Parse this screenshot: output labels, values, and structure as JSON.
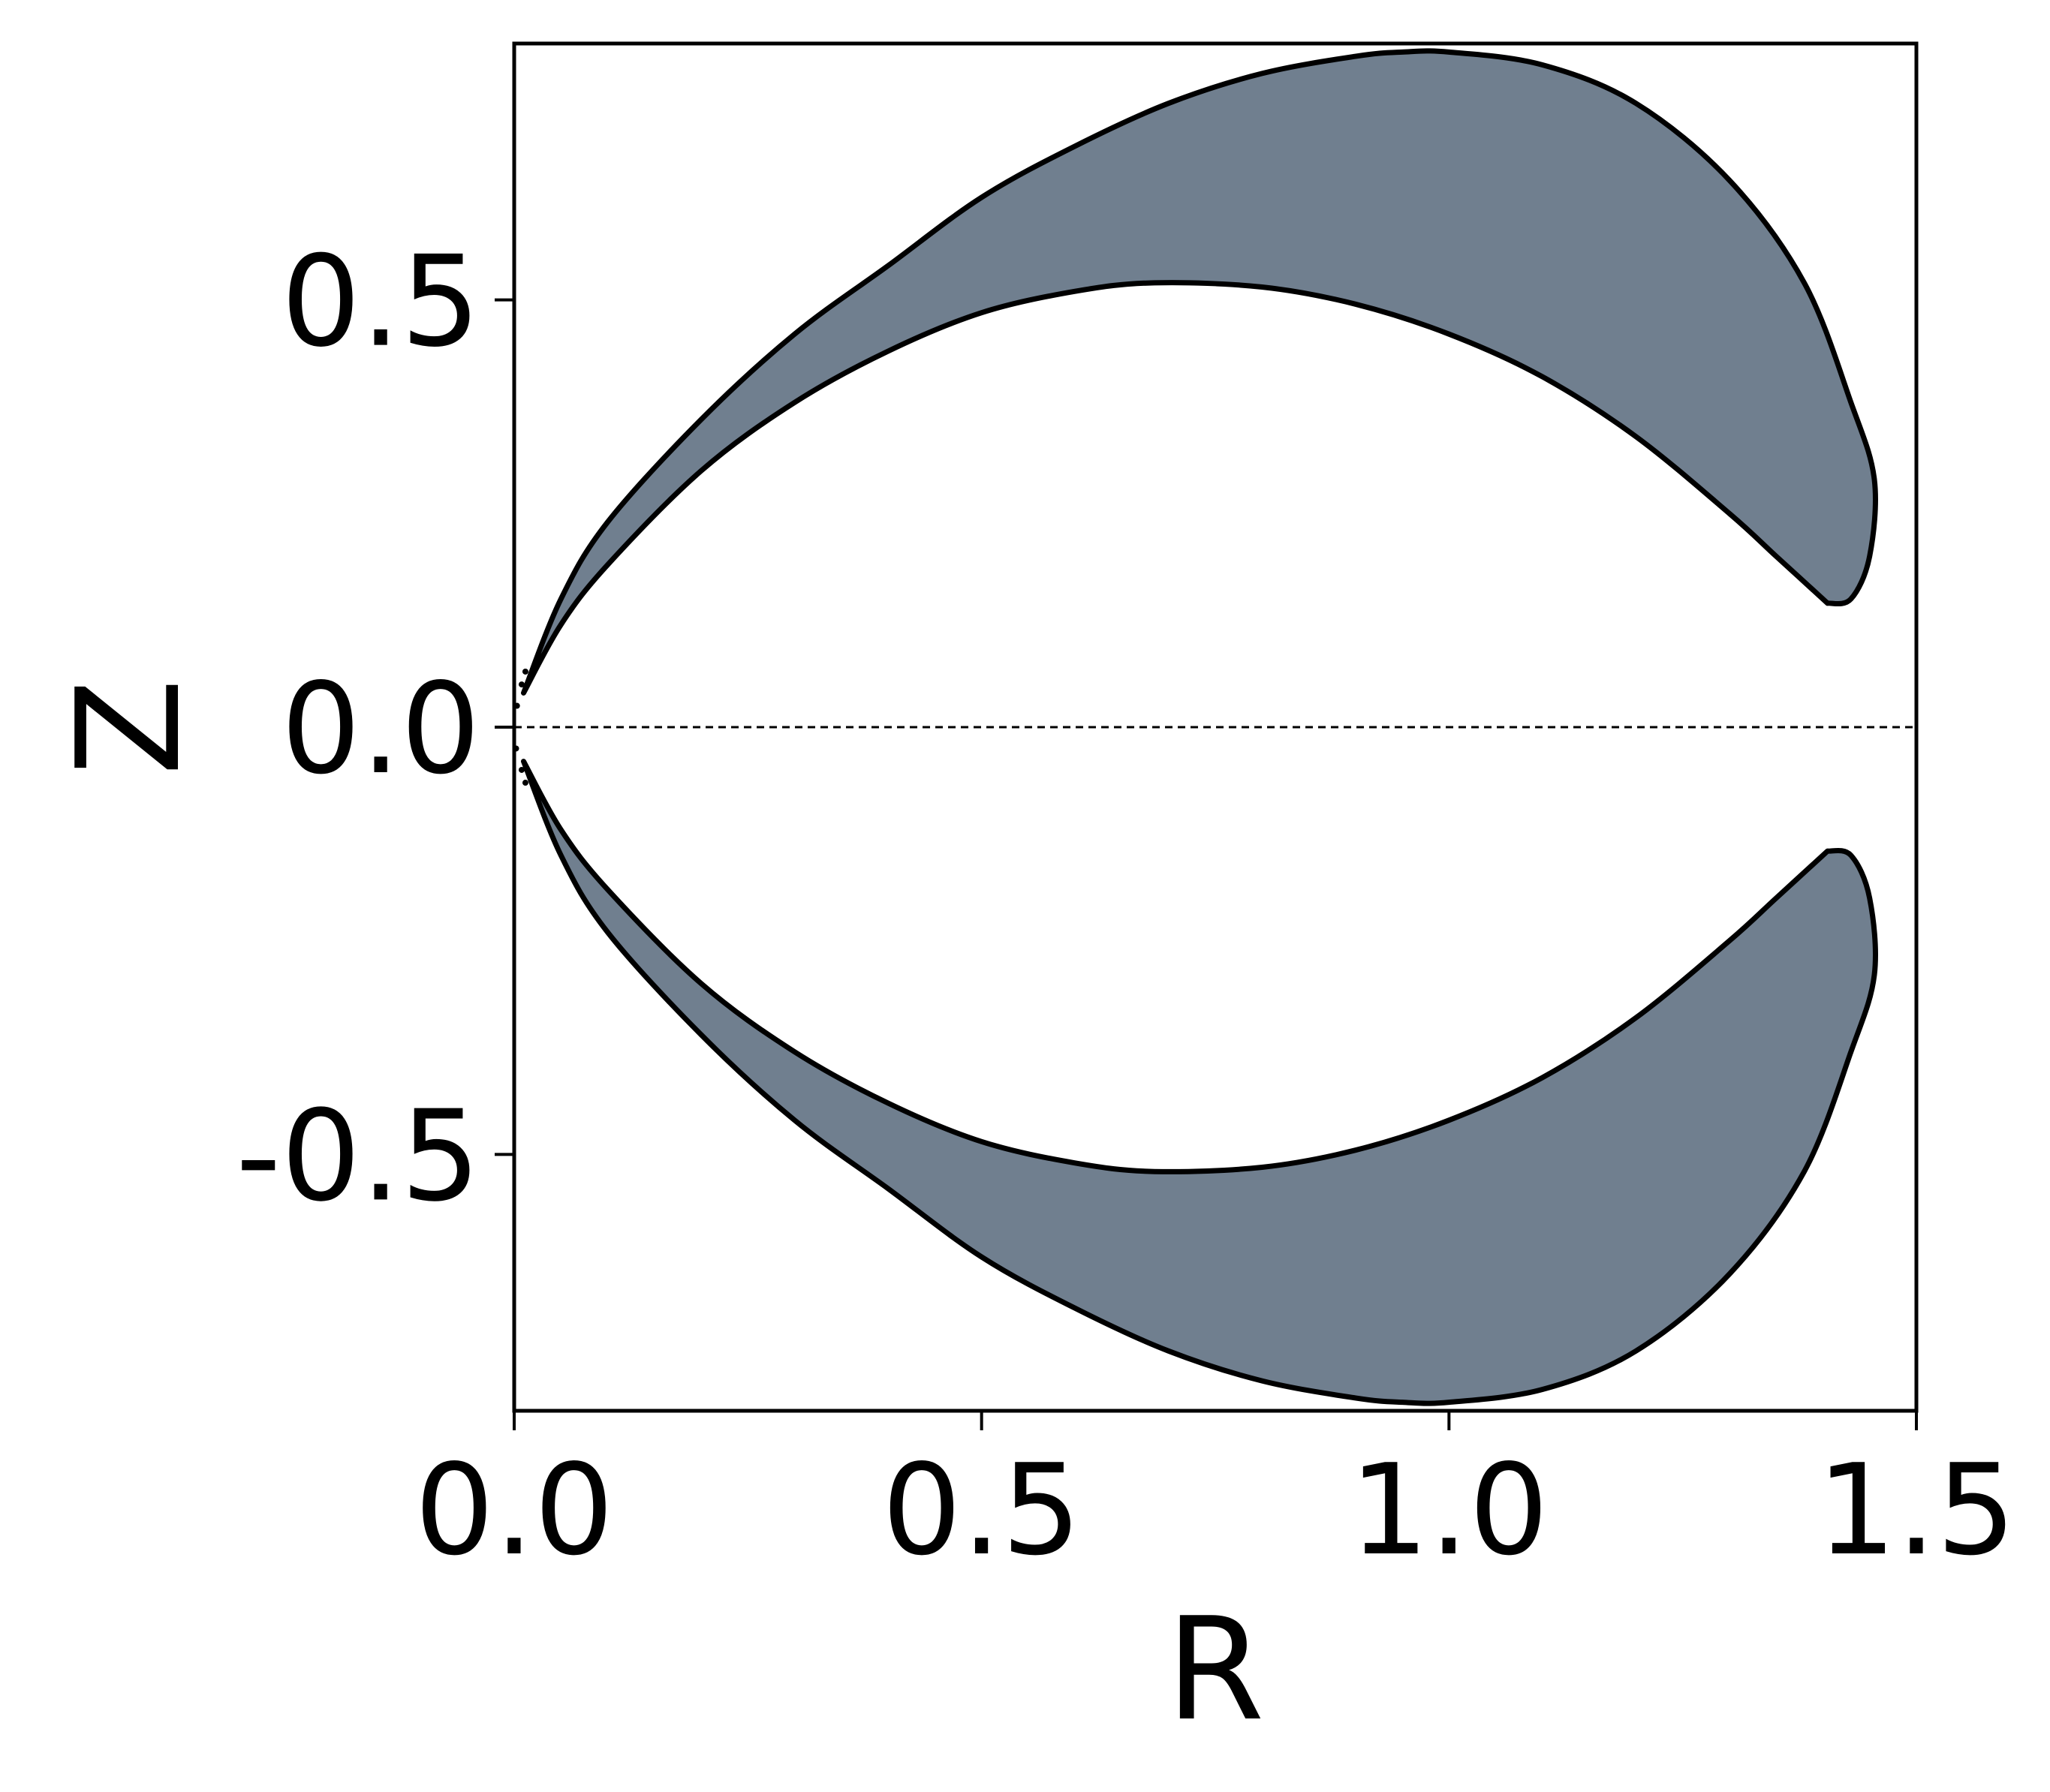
{
  "chart_data": {
    "type": "area",
    "title": "",
    "xlabel": "R",
    "ylabel": "Z",
    "xlim": [
      0.0,
      1.5
    ],
    "ylim": [
      -0.8,
      0.8
    ],
    "xticks": [
      0.0,
      0.5,
      1.0,
      1.5
    ],
    "xtick_labels": [
      "0.0",
      "0.5",
      "1.0",
      "1.5"
    ],
    "yticks": [
      -0.5,
      0.0,
      0.5
    ],
    "ytick_labels": [
      "-0.5",
      "0.0",
      "0.5"
    ],
    "grid": false,
    "legend": "none",
    "reference_line": {
      "y": 0.0,
      "style": "dashed"
    },
    "fill_color": "#707f8f",
    "line_color": "#000000",
    "regions": [
      {
        "name": "upper",
        "outer_boundary": [
          [
            0.01,
            0.04
          ],
          [
            0.05,
            0.15
          ],
          [
            0.1,
            0.24
          ],
          [
            0.2,
            0.36
          ],
          [
            0.3,
            0.46
          ],
          [
            0.4,
            0.54
          ],
          [
            0.5,
            0.62
          ],
          [
            0.6,
            0.68
          ],
          [
            0.7,
            0.73
          ],
          [
            0.8,
            0.765
          ],
          [
            0.9,
            0.785
          ],
          [
            0.95,
            0.79
          ],
          [
            1.0,
            0.79
          ],
          [
            1.1,
            0.775
          ],
          [
            1.2,
            0.73
          ],
          [
            1.3,
            0.64
          ],
          [
            1.38,
            0.52
          ],
          [
            1.43,
            0.38
          ],
          [
            1.455,
            0.29
          ],
          [
            1.45,
            0.2
          ],
          [
            1.43,
            0.15
          ],
          [
            1.405,
            0.145
          ]
        ],
        "inner_boundary": [
          [
            0.01,
            0.04
          ],
          [
            0.05,
            0.12
          ],
          [
            0.1,
            0.19
          ],
          [
            0.2,
            0.3
          ],
          [
            0.3,
            0.38
          ],
          [
            0.4,
            0.44
          ],
          [
            0.5,
            0.485
          ],
          [
            0.6,
            0.51
          ],
          [
            0.685,
            0.52
          ],
          [
            0.8,
            0.515
          ],
          [
            0.9,
            0.495
          ],
          [
            1.0,
            0.46
          ],
          [
            1.1,
            0.41
          ],
          [
            1.2,
            0.34
          ],
          [
            1.3,
            0.25
          ],
          [
            1.35,
            0.2
          ],
          [
            1.405,
            0.145
          ]
        ]
      },
      {
        "name": "lower",
        "outer_boundary": [
          [
            0.01,
            -0.04
          ],
          [
            0.05,
            -0.15
          ],
          [
            0.1,
            -0.24
          ],
          [
            0.2,
            -0.36
          ],
          [
            0.3,
            -0.46
          ],
          [
            0.4,
            -0.54
          ],
          [
            0.5,
            -0.62
          ],
          [
            0.6,
            -0.68
          ],
          [
            0.7,
            -0.73
          ],
          [
            0.8,
            -0.765
          ],
          [
            0.9,
            -0.785
          ],
          [
            0.95,
            -0.79
          ],
          [
            1.0,
            -0.79
          ],
          [
            1.1,
            -0.775
          ],
          [
            1.2,
            -0.73
          ],
          [
            1.3,
            -0.64
          ],
          [
            1.38,
            -0.52
          ],
          [
            1.43,
            -0.38
          ],
          [
            1.455,
            -0.29
          ],
          [
            1.45,
            -0.2
          ],
          [
            1.43,
            -0.15
          ],
          [
            1.405,
            -0.145
          ]
        ],
        "inner_boundary": [
          [
            0.01,
            -0.04
          ],
          [
            0.05,
            -0.12
          ],
          [
            0.1,
            -0.19
          ],
          [
            0.2,
            -0.3
          ],
          [
            0.3,
            -0.38
          ],
          [
            0.4,
            -0.44
          ],
          [
            0.5,
            -0.485
          ],
          [
            0.6,
            -0.51
          ],
          [
            0.685,
            -0.52
          ],
          [
            0.8,
            -0.515
          ],
          [
            0.9,
            -0.495
          ],
          [
            1.0,
            -0.46
          ],
          [
            1.1,
            -0.41
          ],
          [
            1.2,
            -0.34
          ],
          [
            1.3,
            -0.25
          ],
          [
            1.35,
            -0.2
          ],
          [
            1.405,
            -0.145
          ]
        ]
      }
    ],
    "cusp_points": [
      [
        0.003,
        0.025
      ],
      [
        0.002,
        -0.025
      ],
      [
        0.008,
        0.05
      ],
      [
        0.008,
        -0.05
      ],
      [
        0.012,
        0.065
      ],
      [
        0.012,
        -0.065
      ]
    ]
  }
}
